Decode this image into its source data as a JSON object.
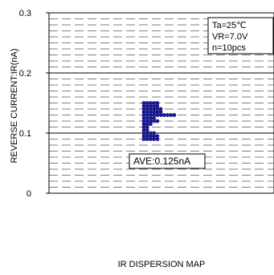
{
  "chart_data": {
    "type": "scatter",
    "title": "IR DISPERSION MAP",
    "xlabel": "",
    "ylabel": "REVERSE CURRENT:IR(nA)",
    "ylim": [
      0,
      0.3
    ],
    "yticks": [
      0,
      0.1,
      0.2,
      0.3
    ],
    "ytick_labels": [
      "0",
      "0.1",
      "0.2",
      "0.3"
    ],
    "grid": true,
    "conditions": [
      "Ta=25℃",
      "VR=7.0V",
      "n=10pcs"
    ],
    "average_label": "AVE:0.125nA",
    "series": [
      {
        "color": "#1a1a8c",
        "points": [
          {
            "level": 0.15,
            "count": 5
          },
          {
            "level": 0.145,
            "count": 5
          },
          {
            "level": 0.14,
            "count": 6
          },
          {
            "level": 0.135,
            "count": 6
          },
          {
            "level": 0.13,
            "count": 10
          },
          {
            "level": 0.125,
            "count": 4
          },
          {
            "level": 0.12,
            "count": 5
          },
          {
            "level": 0.115,
            "count": 3
          },
          {
            "level": 0.11,
            "count": 2
          },
          {
            "level": 0.105,
            "count": 2
          },
          {
            "level": 0.1,
            "count": 4
          },
          {
            "level": 0.095,
            "count": 5
          },
          {
            "level": 0.09,
            "count": 5
          }
        ]
      }
    ]
  }
}
